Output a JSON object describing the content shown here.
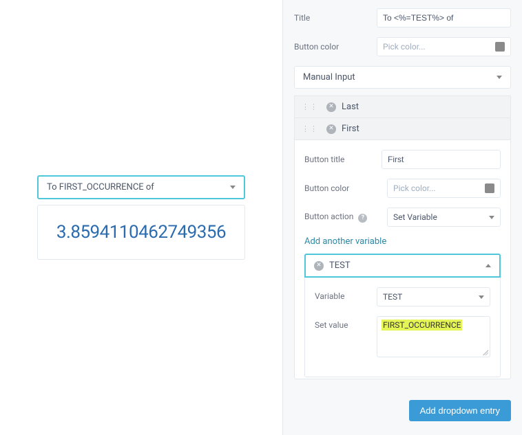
{
  "preview": {
    "select_text": "To FIRST_OCCURRENCE of",
    "number": "3.8594110462749356",
    "number_color": "#2b6cb0"
  },
  "config": {
    "title_label": "Title",
    "title_value": "To <%=TEST%> of",
    "button_color_label": "Button color",
    "button_color_placeholder": "Pick color...",
    "input_type": "Manual Input",
    "options": [
      {
        "label": "Last"
      },
      {
        "label": "First"
      }
    ],
    "button_title_label": "Button title",
    "button_title_value": "First",
    "button_color2_label": "Button color",
    "button_color2_placeholder": "Pick color...",
    "button_action_label": "Button action",
    "button_action_value": "Set Variable",
    "add_variable_link": "Add another variable",
    "variable_header": "TEST",
    "variable_label": "Variable",
    "variable_value": "TEST",
    "set_value_label": "Set value",
    "set_value_text": "FIRST_OCCURRENCE",
    "highlight_color": "#e6f556",
    "add_entry_btn": "Add dropdown entry"
  },
  "colors": {
    "accent_border": "#4dc7d9",
    "primary_btn": "#3b9bd6",
    "link": "#2b8aa7"
  }
}
